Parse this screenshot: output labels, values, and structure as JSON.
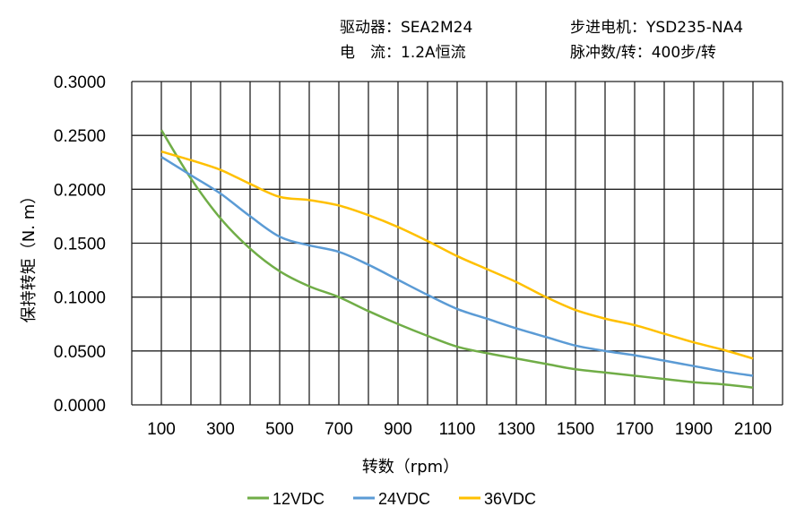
{
  "header": {
    "driver": "驱动器：SEA2M24",
    "motor": "步进电机：YSD235-NA4",
    "current": "电　流：1.2A恒流",
    "pulses": "脉冲数/转：400步/转"
  },
  "chart_data": {
    "type": "line",
    "title": "",
    "xlabel": "转数（rpm）",
    "ylabel": "保持转矩（N. m）",
    "xlim": [
      0,
      2200
    ],
    "ylim": [
      0,
      0.3
    ],
    "grid": true,
    "legend_position": "bottom",
    "x_ticks": [
      "100",
      "300",
      "500",
      "700",
      "900",
      "1100",
      "1300",
      "1500",
      "1700",
      "1900",
      "2100"
    ],
    "y_ticks": [
      "0.0000",
      "0.0500",
      "0.1000",
      "0.1500",
      "0.2000",
      "0.2500",
      "0.3000"
    ],
    "x": [
      100,
      200,
      300,
      400,
      500,
      600,
      700,
      800,
      900,
      1000,
      1100,
      1200,
      1300,
      1400,
      1500,
      1600,
      1700,
      1800,
      1900,
      2000,
      2100
    ],
    "series": [
      {
        "name": "12VDC",
        "color": "#70ad47",
        "values": [
          0.255,
          0.21,
          0.173,
          0.145,
          0.124,
          0.11,
          0.1,
          0.087,
          0.075,
          0.064,
          0.054,
          0.048,
          0.043,
          0.038,
          0.033,
          0.03,
          0.027,
          0.024,
          0.021,
          0.019,
          0.016
        ]
      },
      {
        "name": "24VDC",
        "color": "#5b9bd5",
        "values": [
          0.23,
          0.213,
          0.196,
          0.175,
          0.156,
          0.148,
          0.142,
          0.13,
          0.116,
          0.102,
          0.089,
          0.08,
          0.071,
          0.063,
          0.055,
          0.05,
          0.046,
          0.041,
          0.036,
          0.031,
          0.027
        ]
      },
      {
        "name": "36VDC",
        "color": "#ffc000",
        "values": [
          0.235,
          0.227,
          0.218,
          0.205,
          0.193,
          0.19,
          0.185,
          0.176,
          0.165,
          0.152,
          0.138,
          0.126,
          0.114,
          0.1,
          0.088,
          0.08,
          0.074,
          0.066,
          0.058,
          0.051,
          0.043
        ]
      }
    ]
  }
}
